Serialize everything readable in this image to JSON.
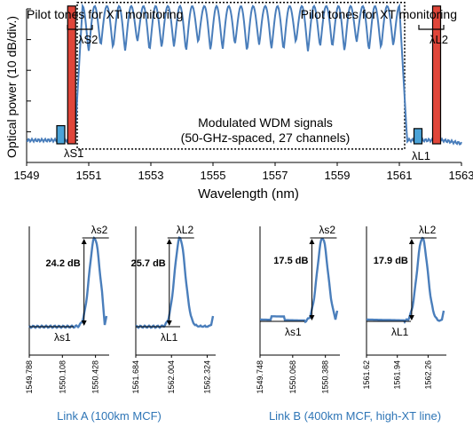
{
  "chart_data": [
    {
      "type": "line",
      "xlabel": "Wavelength (nm)",
      "ylabel": "Optical power (10 dB/div.)",
      "xlim": [
        1549,
        1563
      ],
      "xticks": [
        "1549",
        "1551",
        "1553",
        "1555",
        "1557",
        "1559",
        "1561",
        "1563"
      ],
      "y_divisions": 5,
      "annotations": {
        "pilot_left": "Pilot tones for XT monitoring",
        "pilot_right": "Pilot tones for XT monitoring",
        "lambda_s2": "λS2",
        "lambda_l2": "λL2",
        "lambda_s1": "λS1",
        "lambda_l1": "λL1",
        "wdm_line1": "Modulated WDM signals",
        "wdm_line2": "(50-GHz-spaced, 27 channels)"
      },
      "wdm": {
        "start_nm": 1550.8,
        "end_nm": 1561.0,
        "channels": 27,
        "top_div": 4.6,
        "bottom_div": 3.3
      },
      "tones": [
        {
          "name": "λS1",
          "wavelength_nm": 1550.1,
          "level_div": 0.5,
          "color": "#4aa3d8"
        },
        {
          "name": "λS2",
          "wavelength_nm": 1550.45,
          "level_div": 4.6,
          "color": "#e0463a"
        },
        {
          "name": "λL1",
          "wavelength_nm": 1561.6,
          "level_div": 0.4,
          "color": "#4aa3d8"
        },
        {
          "name": "λL2",
          "wavelength_nm": 1562.2,
          "level_div": 4.6,
          "color": "#e0463a"
        }
      ],
      "series_color": "#4a7ebb"
    },
    {
      "type": "line",
      "xticks": [
        "1549.788",
        "1550.108",
        "1550.428"
      ],
      "xrange": [
        1549.788,
        1550.56
      ],
      "peak_at": 1550.42,
      "peak_label": "λs2",
      "floor_label": "λs1",
      "delta_label": "24.2 dB",
      "delta_db": 24.2
    },
    {
      "type": "line",
      "xticks": [
        "1561.684",
        "1562.004",
        "1562.324"
      ],
      "xrange": [
        1561.684,
        1562.4
      ],
      "peak_at": 1562.08,
      "peak_label": "λL2",
      "floor_label": "λL1",
      "delta_label": "25.7 dB",
      "delta_db": 25.7
    },
    {
      "type": "line",
      "xticks": [
        "1549.748",
        "1550.068",
        "1550.388"
      ],
      "xrange": [
        1549.748,
        1550.53
      ],
      "peak_at": 1550.36,
      "peak_label": "λs2",
      "floor_label": "λs1",
      "delta_label": "17.5 dB",
      "delta_db": 17.5
    },
    {
      "type": "line",
      "xticks": [
        "1561.62",
        "1561.94",
        "1562.26"
      ],
      "xrange": [
        1561.62,
        1562.45
      ],
      "peak_at": 1562.2,
      "peak_label": "λL2",
      "floor_label": "λL1",
      "delta_label": "17.9 dB",
      "delta_db": 17.9
    }
  ],
  "captions": {
    "link_a": "Link A (100km MCF)",
    "link_b": "Link B (400km MCF, high-XT line)",
    "color": "#2e75b6"
  }
}
